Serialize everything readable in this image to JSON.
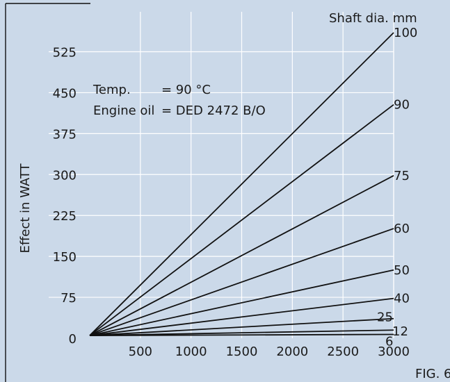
{
  "chart_data": {
    "type": "line",
    "title": "",
    "xlabel": "",
    "ylabel": "Effect in WATT",
    "xlim": [
      0,
      3000
    ],
    "ylim": [
      0,
      560
    ],
    "xticks": [
      500,
      1000,
      1500,
      2000,
      2500,
      3000
    ],
    "yticks": [
      0,
      75,
      150,
      225,
      300,
      375,
      450,
      525
    ],
    "grid": true,
    "legend_title": "Shaft dia. mm",
    "annotations": {
      "temp_label": "Temp.",
      "temp_value": "= 90 °C",
      "oil_label": "Engine oil",
      "oil_value": "= DED 2472 B/O"
    },
    "figure_label": "FIG. 6",
    "series": [
      {
        "name": "100",
        "x": [
          0,
          3000
        ],
        "y": [
          5,
          560
        ]
      },
      {
        "name": "90",
        "x": [
          0,
          3000
        ],
        "y": [
          5,
          428
        ]
      },
      {
        "name": "75",
        "x": [
          0,
          3000
        ],
        "y": [
          5,
          298
        ]
      },
      {
        "name": "60",
        "x": [
          0,
          3000
        ],
        "y": [
          5,
          201
        ]
      },
      {
        "name": "50",
        "x": [
          0,
          3000
        ],
        "y": [
          5,
          125
        ]
      },
      {
        "name": "40",
        "x": [
          0,
          3000
        ],
        "y": [
          5,
          73
        ]
      },
      {
        "name": "25",
        "x": [
          0,
          3000
        ],
        "y": [
          5,
          36
        ]
      },
      {
        "name": "12",
        "x": [
          0,
          3000
        ],
        "y": [
          5,
          15
        ]
      },
      {
        "name": "6",
        "x": [
          0,
          3000
        ],
        "y": [
          5,
          7
        ]
      }
    ]
  }
}
